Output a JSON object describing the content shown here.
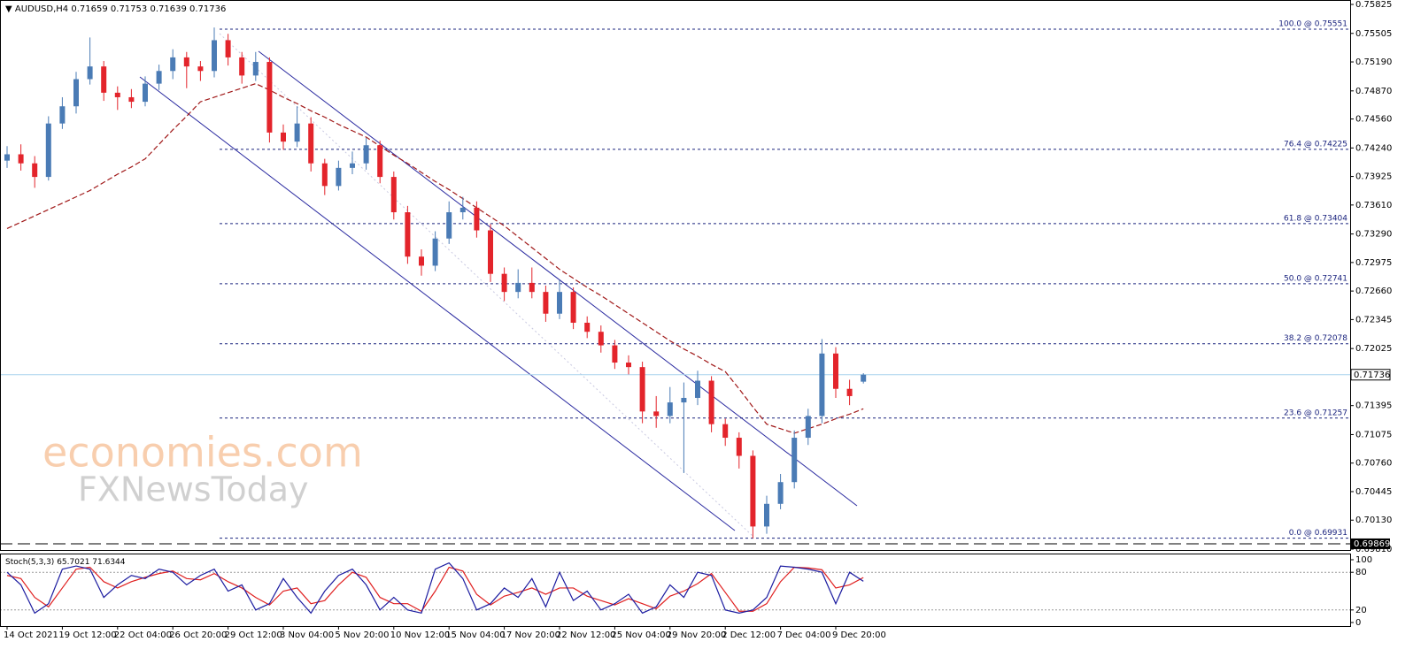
{
  "chart_data": {
    "type": "candlestick",
    "symbol": "AUDUSD,H4",
    "categories": [
      "14 Oct 2021",
      null,
      null,
      null,
      "19 Oct 12:00",
      null,
      null,
      null,
      "22 Oct 04:00",
      null,
      null,
      null,
      "26 Oct 20:00",
      null,
      null,
      null,
      "29 Oct 12:00",
      null,
      null,
      null,
      "3 Nov 04:00",
      null,
      null,
      null,
      "5 Nov 20:00",
      null,
      null,
      null,
      "10 Nov 12:00",
      null,
      null,
      null,
      "15 Nov 04:00",
      null,
      null,
      null,
      "17 Nov 20:00",
      null,
      null,
      null,
      "22 Nov 12:00",
      null,
      null,
      null,
      "25 Nov 04:00",
      null,
      null,
      null,
      "29 Nov 20:00",
      null,
      null,
      null,
      "2 Dec 12:00",
      null,
      null,
      null,
      "7 Dec 04:00",
      null,
      null,
      null,
      "9 Dec 20:00",
      null,
      null
    ],
    "candles": [
      [
        0.741,
        0.7426,
        0.7402,
        0.7417
      ],
      [
        0.7417,
        0.7428,
        0.7399,
        0.7407
      ],
      [
        0.7407,
        0.7415,
        0.738,
        0.7392
      ],
      [
        0.7392,
        0.7459,
        0.7388,
        0.7451
      ],
      [
        0.7451,
        0.748,
        0.7445,
        0.747
      ],
      [
        0.747,
        0.7508,
        0.7462,
        0.75
      ],
      [
        0.75,
        0.7546,
        0.7494,
        0.7514
      ],
      [
        0.7514,
        0.752,
        0.7476,
        0.7485
      ],
      [
        0.7485,
        0.7492,
        0.7466,
        0.748
      ],
      [
        0.748,
        0.7489,
        0.7468,
        0.7475
      ],
      [
        0.7475,
        0.7503,
        0.747,
        0.7495
      ],
      [
        0.7495,
        0.7516,
        0.7488,
        0.7509
      ],
      [
        0.7509,
        0.7533,
        0.75,
        0.7524
      ],
      [
        0.7524,
        0.753,
        0.749,
        0.7514
      ],
      [
        0.7514,
        0.752,
        0.7498,
        0.7509
      ],
      [
        0.7509,
        0.7557,
        0.7502,
        0.7543
      ],
      [
        0.7543,
        0.755,
        0.7515,
        0.7524
      ],
      [
        0.7524,
        0.753,
        0.7495,
        0.7504
      ],
      [
        0.7504,
        0.753,
        0.7498,
        0.7519
      ],
      [
        0.7519,
        0.7524,
        0.743,
        0.7441
      ],
      [
        0.7441,
        0.745,
        0.7422,
        0.7431
      ],
      [
        0.7431,
        0.747,
        0.7425,
        0.7451
      ],
      [
        0.7451,
        0.7458,
        0.7398,
        0.7407
      ],
      [
        0.7407,
        0.7412,
        0.7372,
        0.7382
      ],
      [
        0.7382,
        0.741,
        0.7377,
        0.7402
      ],
      [
        0.7402,
        0.742,
        0.7395,
        0.7407
      ],
      [
        0.7407,
        0.7435,
        0.74,
        0.7427
      ],
      [
        0.7427,
        0.7432,
        0.7385,
        0.7392
      ],
      [
        0.7392,
        0.7398,
        0.7345,
        0.7353
      ],
      [
        0.7353,
        0.736,
        0.7296,
        0.7304
      ],
      [
        0.7304,
        0.7312,
        0.7283,
        0.7294
      ],
      [
        0.7294,
        0.7332,
        0.7288,
        0.7324
      ],
      [
        0.7324,
        0.7365,
        0.7318,
        0.7353
      ],
      [
        0.7353,
        0.737,
        0.7345,
        0.7358
      ],
      [
        0.7358,
        0.7365,
        0.7325,
        0.7333
      ],
      [
        0.7333,
        0.734,
        0.7276,
        0.7285
      ],
      [
        0.7285,
        0.7292,
        0.7255,
        0.7265
      ],
      [
        0.7265,
        0.729,
        0.7258,
        0.7275
      ],
      [
        0.7275,
        0.7292,
        0.7258,
        0.7265
      ],
      [
        0.7265,
        0.7272,
        0.7232,
        0.7241
      ],
      [
        0.7241,
        0.7278,
        0.7235,
        0.7265
      ],
      [
        0.7265,
        0.727,
        0.7224,
        0.7231
      ],
      [
        0.7231,
        0.7238,
        0.7214,
        0.7221
      ],
      [
        0.7221,
        0.7228,
        0.7198,
        0.7206
      ],
      [
        0.7206,
        0.7212,
        0.718,
        0.7187
      ],
      [
        0.7187,
        0.7195,
        0.7174,
        0.7182
      ],
      [
        0.7182,
        0.7188,
        0.712,
        0.7133
      ],
      [
        0.7133,
        0.715,
        0.7115,
        0.7128
      ],
      [
        0.7128,
        0.716,
        0.712,
        0.7143
      ],
      [
        0.7143,
        0.7165,
        0.7065,
        0.7148
      ],
      [
        0.7148,
        0.7178,
        0.714,
        0.7167
      ],
      [
        0.7167,
        0.7172,
        0.711,
        0.7119
      ],
      [
        0.7119,
        0.7125,
        0.7095,
        0.7104
      ],
      [
        0.7104,
        0.711,
        0.707,
        0.7084
      ],
      [
        0.7084,
        0.709,
        0.6993,
        0.7006
      ],
      [
        0.7006,
        0.704,
        0.6998,
        0.7031
      ],
      [
        0.7031,
        0.7064,
        0.7025,
        0.7055
      ],
      [
        0.7055,
        0.7112,
        0.7048,
        0.7104
      ],
      [
        0.7104,
        0.7136,
        0.7096,
        0.7128
      ],
      [
        0.7128,
        0.7213,
        0.712,
        0.7197
      ],
      [
        0.7197,
        0.7204,
        0.7148,
        0.7158
      ],
      [
        0.7158,
        0.7168,
        0.714,
        0.715
      ],
      [
        0.71659,
        0.71753,
        0.71639,
        0.71736
      ]
    ],
    "bull_color": "#4a7bb5",
    "bear_color": "#e3242b",
    "ma": {
      "color": "#a01818",
      "values": [
        0.7335,
        0.7342,
        0.7349,
        0.7356,
        0.7363,
        0.737,
        0.7377,
        0.7386,
        0.7395,
        0.7403,
        0.7412,
        0.7428,
        0.7444,
        0.7459,
        0.7475,
        0.748,
        0.7485,
        0.749,
        0.7495,
        0.7488,
        0.748,
        0.7473,
        0.7465,
        0.7458,
        0.745,
        0.7443,
        0.7436,
        0.7426,
        0.7416,
        0.7407,
        0.7397,
        0.7387,
        0.7378,
        0.7368,
        0.7358,
        0.7348,
        0.7338,
        0.7326,
        0.7314,
        0.7302,
        0.729,
        0.728,
        0.727,
        0.7261,
        0.7251,
        0.7241,
        0.7231,
        0.7221,
        0.7211,
        0.7202,
        0.7194,
        0.7185,
        0.7177,
        0.7158,
        0.7138,
        0.7119,
        0.7114,
        0.7109,
        0.7114,
        0.7119,
        0.7125,
        0.713,
        0.7136
      ]
    },
    "ylim": [
      0.6981,
      0.75825
    ],
    "yticks": [
      0.75825,
      0.75505,
      {
        "value": 0.7519,
        "label": "0.75190"
      },
      {
        "value": 0.7487,
        "label": "0.74870"
      },
      {
        "value": 0.7456,
        "label": "0.74560"
      },
      {
        "value": 0.7424,
        "label": "0.74240"
      },
      0.73925,
      {
        "value": 0.7361,
        "label": "0.73610"
      },
      {
        "value": 0.7329,
        "label": "0.73290"
      },
      0.72975,
      {
        "value": 0.7266,
        "label": "0.72660"
      },
      0.72345,
      0.72025,
      0.71395,
      0.71075,
      {
        "value": 0.7076,
        "label": "0.70760"
      },
      0.70445,
      {
        "value": 0.7013,
        "label": "0.70130"
      },
      {
        "value": 0.6981,
        "label": "0.69810"
      }
    ],
    "fib_levels": [
      {
        "value": 0.75551,
        "label": "100.0 @ 0.75551"
      },
      {
        "value": 0.74225,
        "label": "76.4 @ 0.74225"
      },
      {
        "value": 0.73404,
        "label": "61.8 @ 0.73404"
      },
      {
        "value": 0.72741,
        "label": "50.0 @ 0.72741"
      },
      {
        "value": 0.72078,
        "label": "38.2 @ 0.72078"
      },
      {
        "value": 0.71257,
        "label": "23.6 @ 0.71257"
      },
      {
        "value": 0.69931,
        "label": "0.0 @ 0.69931"
      }
    ],
    "bottom_level": 0.69869,
    "stochastic": {
      "title": "Stoch(5,3,3)",
      "ylim": [
        0,
        100
      ],
      "yticks": [
        100,
        80,
        20,
        0
      ],
      "levels": [
        80,
        20
      ],
      "main": {
        "color": "#1c1ca0",
        "values": [
          80,
          60,
          15,
          30,
          85,
          90,
          85,
          40,
          60,
          75,
          70,
          85,
          80,
          60,
          75,
          85,
          50,
          60,
          20,
          30,
          70,
          40,
          15,
          50,
          75,
          85,
          60,
          20,
          40,
          20,
          15,
          85,
          95,
          70,
          20,
          30,
          55,
          40,
          70,
          25,
          80,
          35,
          50,
          20,
          30,
          45,
          15,
          25,
          60,
          40,
          80,
          75,
          20,
          15,
          20,
          40,
          90,
          88,
          85,
          80,
          30,
          80,
          65.7021
        ]
      },
      "signal": {
        "color": "#e02020",
        "values": [
          75,
          70,
          40,
          25,
          55,
          85,
          88,
          65,
          55,
          65,
          72,
          78,
          82,
          70,
          68,
          78,
          65,
          55,
          40,
          28,
          50,
          55,
          30,
          35,
          60,
          80,
          72,
          40,
          30,
          30,
          18,
          50,
          88,
          82,
          45,
          28,
          42,
          48,
          55,
          45,
          55,
          55,
          42,
          35,
          28,
          38,
          30,
          22,
          42,
          50,
          62,
          78,
          48,
          18,
          18,
          30,
          65,
          88,
          87,
          84,
          55,
          60,
          71.6344
        ]
      }
    },
    "watermark": [
      "economies.com",
      "FXNewsToday"
    ]
  }
}
